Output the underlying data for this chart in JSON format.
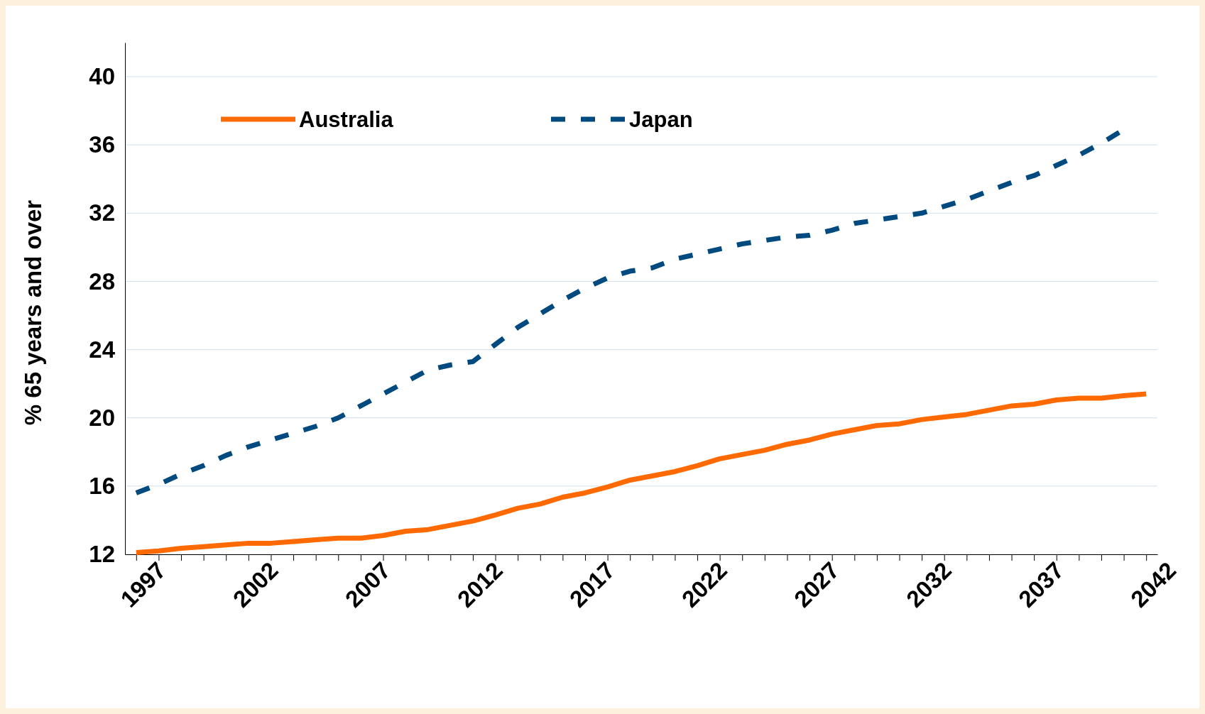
{
  "chart_data": {
    "type": "line",
    "ylabel": "% 65 years and over",
    "x": [
      1997,
      1998,
      1999,
      2000,
      2001,
      2002,
      2003,
      2004,
      2005,
      2006,
      2007,
      2008,
      2009,
      2010,
      2011,
      2012,
      2013,
      2014,
      2015,
      2016,
      2017,
      2018,
      2019,
      2020,
      2021,
      2022,
      2023,
      2024,
      2025,
      2026,
      2027,
      2028,
      2029,
      2030,
      2031,
      2032,
      2033,
      2034,
      2035,
      2036,
      2037,
      2038,
      2039,
      2040,
      2041,
      2042
    ],
    "xlim": [
      1996.5,
      2042.5
    ],
    "xticks": [
      1997,
      {
        "value": 1998,
        "label": null
      },
      {
        "value": 1999,
        "label": null
      },
      {
        "value": 2000,
        "label": null
      },
      {
        "value": 2001,
        "label": null
      },
      2002,
      {
        "value": 2003,
        "label": null
      },
      {
        "value": 2004,
        "label": null
      },
      {
        "value": 2005,
        "label": null
      },
      {
        "value": 2006,
        "label": null
      },
      2007,
      {
        "value": 2008,
        "label": null
      },
      {
        "value": 2009,
        "label": null
      },
      {
        "value": 2010,
        "label": null
      },
      {
        "value": 2011,
        "label": null
      },
      2012,
      {
        "value": 2013,
        "label": null
      },
      {
        "value": 2014,
        "label": null
      },
      {
        "value": 2015,
        "label": null
      },
      {
        "value": 2016,
        "label": null
      },
      2017,
      {
        "value": 2018,
        "label": null
      },
      {
        "value": 2019,
        "label": null
      },
      {
        "value": 2020,
        "label": null
      },
      {
        "value": 2021,
        "label": null
      },
      2022,
      {
        "value": 2023,
        "label": null
      },
      {
        "value": 2024,
        "label": null
      },
      {
        "value": 2025,
        "label": null
      },
      {
        "value": 2026,
        "label": null
      },
      2027,
      {
        "value": 2028,
        "label": null
      },
      {
        "value": 2029,
        "label": null
      },
      {
        "value": 2030,
        "label": null
      },
      {
        "value": 2031,
        "label": null
      },
      2032,
      {
        "value": 2033,
        "label": null
      },
      {
        "value": 2034,
        "label": null
      },
      {
        "value": 2035,
        "label": null
      },
      {
        "value": 2036,
        "label": null
      },
      2037,
      {
        "value": 2038,
        "label": null
      },
      {
        "value": 2039,
        "label": null
      },
      {
        "value": 2040,
        "label": null
      },
      {
        "value": 2041,
        "label": null
      },
      2042
    ],
    "ylim": [
      12,
      42
    ],
    "yticks": [
      12,
      16,
      20,
      24,
      28,
      32,
      36,
      40
    ],
    "grid": "y",
    "legend": "top left",
    "series": [
      {
        "name": "Australia",
        "color": "#ff6a00",
        "line_style": "solid",
        "values": [
          12.1,
          12.2,
          12.35,
          12.45,
          12.55,
          12.65,
          12.65,
          12.75,
          12.85,
          12.95,
          12.95,
          13.1,
          13.35,
          13.45,
          13.7,
          13.95,
          14.3,
          14.7,
          14.95,
          15.35,
          15.6,
          15.95,
          16.35,
          16.6,
          16.85,
          17.2,
          17.6,
          17.85,
          18.1,
          18.45,
          18.7,
          19.05,
          19.3,
          19.55,
          19.65,
          19.9,
          20.05,
          20.2,
          20.45,
          20.7,
          20.8,
          21.05,
          21.15,
          21.15,
          21.3,
          21.4
        ]
      },
      {
        "name": "Japan",
        "color": "#004a80",
        "line_style": "dashed",
        "values": [
          15.6,
          16.1,
          16.7,
          17.2,
          17.8,
          18.3,
          18.7,
          19.1,
          19.5,
          20.0,
          20.7,
          21.4,
          22.1,
          22.8,
          23.1,
          23.3,
          24.3,
          25.3,
          26.1,
          26.9,
          27.6,
          28.2,
          28.6,
          28.8,
          29.3,
          29.6,
          29.9,
          30.2,
          30.4,
          30.6,
          30.7,
          31.0,
          31.4,
          31.6,
          31.8,
          32.0,
          32.4,
          32.8,
          33.3,
          33.8,
          34.2,
          34.8,
          35.4,
          36.1,
          36.9,
          null
        ]
      }
    ]
  }
}
